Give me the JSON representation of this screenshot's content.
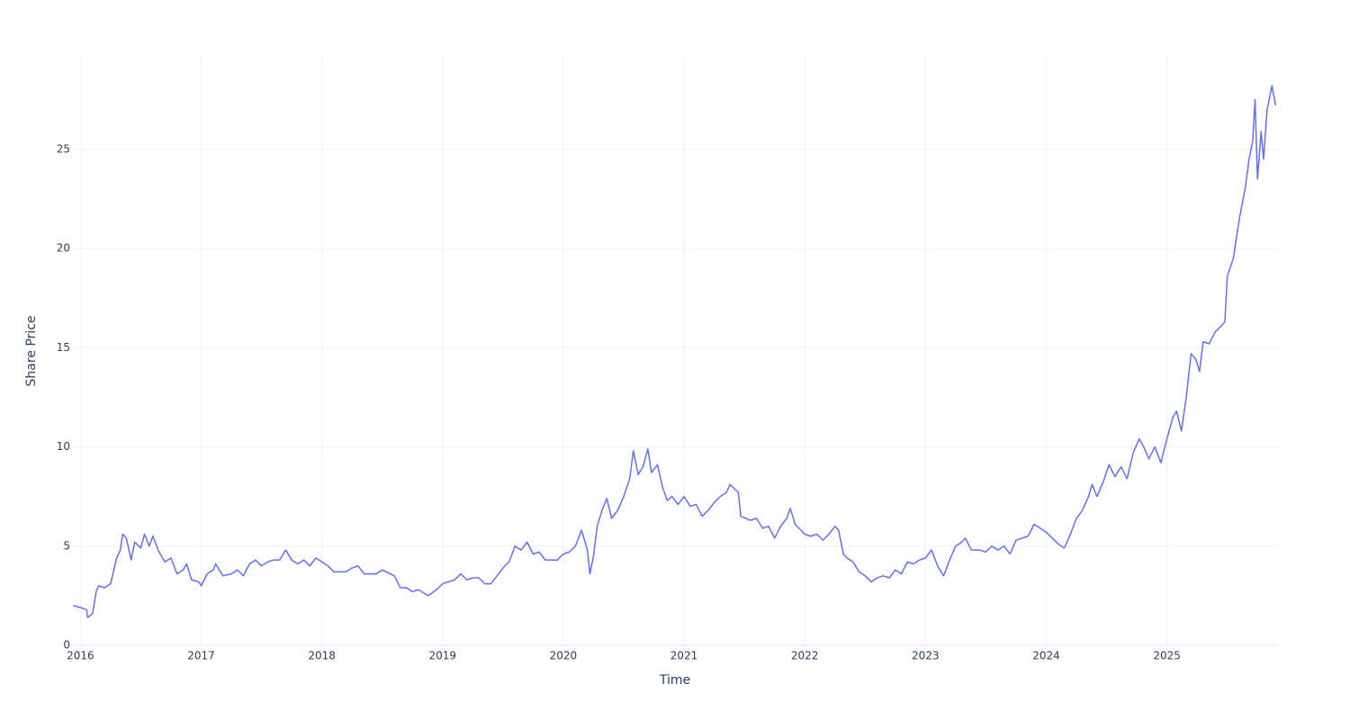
{
  "chart_data": {
    "type": "line",
    "x_label": "Time",
    "y_label": "Share Price",
    "color": "#636efa",
    "grid": true,
    "xlim": [
      2015.93,
      2025.92
    ],
    "ylim": [
      0,
      29.8
    ],
    "xticks": [
      2016,
      2017,
      2018,
      2019,
      2020,
      2021,
      2022,
      2023,
      2024,
      2025
    ],
    "yticks": [
      0,
      5,
      10,
      15,
      20,
      25
    ],
    "x": [
      2015.94,
      2016.0,
      2016.05,
      2016.06,
      2016.1,
      2016.13,
      2016.15,
      2016.2,
      2016.25,
      2016.3,
      2016.33,
      2016.35,
      2016.38,
      2016.42,
      2016.45,
      2016.5,
      2016.53,
      2016.57,
      2016.6,
      2016.65,
      2016.7,
      2016.75,
      2016.8,
      2016.85,
      2016.88,
      2016.92,
      2016.98,
      2017.0,
      2017.05,
      2017.1,
      2017.12,
      2017.18,
      2017.25,
      2017.3,
      2017.35,
      2017.4,
      2017.45,
      2017.5,
      2017.55,
      2017.6,
      2017.65,
      2017.7,
      2017.75,
      2017.8,
      2017.85,
      2017.9,
      2017.95,
      2018.05,
      2018.1,
      2018.2,
      2018.25,
      2018.3,
      2018.35,
      2018.45,
      2018.5,
      2018.6,
      2018.65,
      2018.7,
      2018.75,
      2018.8,
      2018.88,
      2018.95,
      2019.0,
      2019.05,
      2019.1,
      2019.15,
      2019.2,
      2019.25,
      2019.3,
      2019.35,
      2019.4,
      2019.45,
      2019.5,
      2019.55,
      2019.6,
      2019.65,
      2019.7,
      2019.75,
      2019.8,
      2019.85,
      2019.95,
      2020.0,
      2020.05,
      2020.1,
      2020.15,
      2020.2,
      2020.22,
      2020.25,
      2020.28,
      2020.32,
      2020.36,
      2020.4,
      2020.45,
      2020.5,
      2020.55,
      2020.58,
      2020.62,
      2020.66,
      2020.7,
      2020.73,
      2020.78,
      2020.82,
      2020.86,
      2020.9,
      2020.95,
      2021.0,
      2021.05,
      2021.1,
      2021.15,
      2021.2,
      2021.25,
      2021.3,
      2021.35,
      2021.38,
      2021.45,
      2021.47,
      2021.55,
      2021.6,
      2021.65,
      2021.7,
      2021.75,
      2021.8,
      2021.85,
      2021.88,
      2021.92,
      2022.0,
      2022.05,
      2022.1,
      2022.15,
      2022.2,
      2022.25,
      2022.28,
      2022.32,
      2022.35,
      2022.4,
      2022.45,
      2022.5,
      2022.55,
      2022.6,
      2022.65,
      2022.7,
      2022.75,
      2022.8,
      2022.85,
      2022.9,
      2022.95,
      2023.0,
      2023.05,
      2023.1,
      2023.15,
      2023.2,
      2023.25,
      2023.3,
      2023.33,
      2023.38,
      2023.45,
      2023.5,
      2023.55,
      2023.6,
      2023.65,
      2023.7,
      2023.75,
      2023.8,
      2023.85,
      2023.9,
      2023.95,
      2024.0,
      2024.05,
      2024.1,
      2024.15,
      2024.2,
      2024.25,
      2024.3,
      2024.35,
      2024.38,
      2024.42,
      2024.47,
      2024.52,
      2024.57,
      2024.62,
      2024.67,
      2024.72,
      2024.77,
      2024.8,
      2024.85,
      2024.9,
      2024.95,
      2025.0,
      2025.05,
      2025.08,
      2025.12,
      2025.16,
      2025.2,
      2025.24,
      2025.27,
      2025.3,
      2025.35,
      2025.4,
      2025.45,
      2025.48,
      2025.5,
      2025.55,
      2025.6,
      2025.65,
      2025.68,
      2025.71,
      2025.73,
      2025.75,
      2025.78,
      2025.8,
      2025.83,
      2025.87,
      2025.9
    ],
    "values": [
      2.0,
      1.9,
      1.8,
      1.4,
      1.6,
      2.7,
      3.0,
      2.9,
      3.1,
      4.4,
      4.8,
      5.6,
      5.4,
      4.3,
      5.2,
      4.9,
      5.6,
      5.0,
      5.5,
      4.7,
      4.2,
      4.4,
      3.6,
      3.8,
      4.1,
      3.3,
      3.2,
      3.0,
      3.6,
      3.8,
      4.1,
      3.5,
      3.6,
      3.8,
      3.5,
      4.1,
      4.3,
      4.0,
      4.2,
      4.3,
      4.3,
      4.8,
      4.3,
      4.1,
      4.3,
      4.0,
      4.4,
      4.0,
      3.7,
      3.7,
      3.9,
      4.0,
      3.6,
      3.6,
      3.8,
      3.5,
      2.9,
      2.9,
      2.7,
      2.8,
      2.5,
      2.8,
      3.1,
      3.2,
      3.3,
      3.6,
      3.3,
      3.4,
      3.4,
      3.1,
      3.1,
      3.5,
      3.9,
      4.2,
      5.0,
      4.8,
      5.2,
      4.6,
      4.7,
      4.3,
      4.3,
      4.6,
      4.7,
      5.0,
      5.8,
      4.8,
      3.6,
      4.5,
      6.0,
      6.8,
      7.4,
      6.4,
      6.8,
      7.5,
      8.4,
      9.8,
      8.6,
      9.0,
      9.9,
      8.7,
      9.1,
      8.0,
      7.3,
      7.5,
      7.1,
      7.5,
      7.0,
      7.1,
      6.5,
      6.8,
      7.2,
      7.5,
      7.7,
      8.1,
      7.7,
      6.5,
      6.3,
      6.4,
      5.9,
      6.0,
      5.4,
      6.0,
      6.4,
      6.9,
      6.1,
      5.6,
      5.5,
      5.6,
      5.3,
      5.6,
      6.0,
      5.8,
      4.6,
      4.4,
      4.2,
      3.7,
      3.5,
      3.2,
      3.4,
      3.5,
      3.4,
      3.8,
      3.6,
      4.2,
      4.1,
      4.3,
      4.4,
      4.8,
      4.0,
      3.5,
      4.3,
      5.0,
      5.2,
      5.4,
      4.8,
      4.8,
      4.7,
      5.0,
      4.8,
      5.0,
      4.6,
      5.3,
      5.4,
      5.5,
      6.1,
      5.9,
      5.7,
      5.4,
      5.1,
      4.9,
      5.6,
      6.4,
      6.8,
      7.5,
      8.1,
      7.5,
      8.2,
      9.1,
      8.5,
      9.0,
      8.4,
      9.7,
      10.4,
      10.1,
      9.4,
      10.0,
      9.2,
      10.4,
      11.5,
      11.8,
      10.8,
      12.5,
      14.7,
      14.4,
      13.8,
      15.3,
      15.2,
      15.8,
      16.1,
      16.3,
      18.6,
      19.5,
      21.5,
      23.1,
      24.5,
      25.4,
      27.5,
      23.5,
      25.9,
      24.5,
      27.0,
      28.2,
      27.2
    ]
  }
}
